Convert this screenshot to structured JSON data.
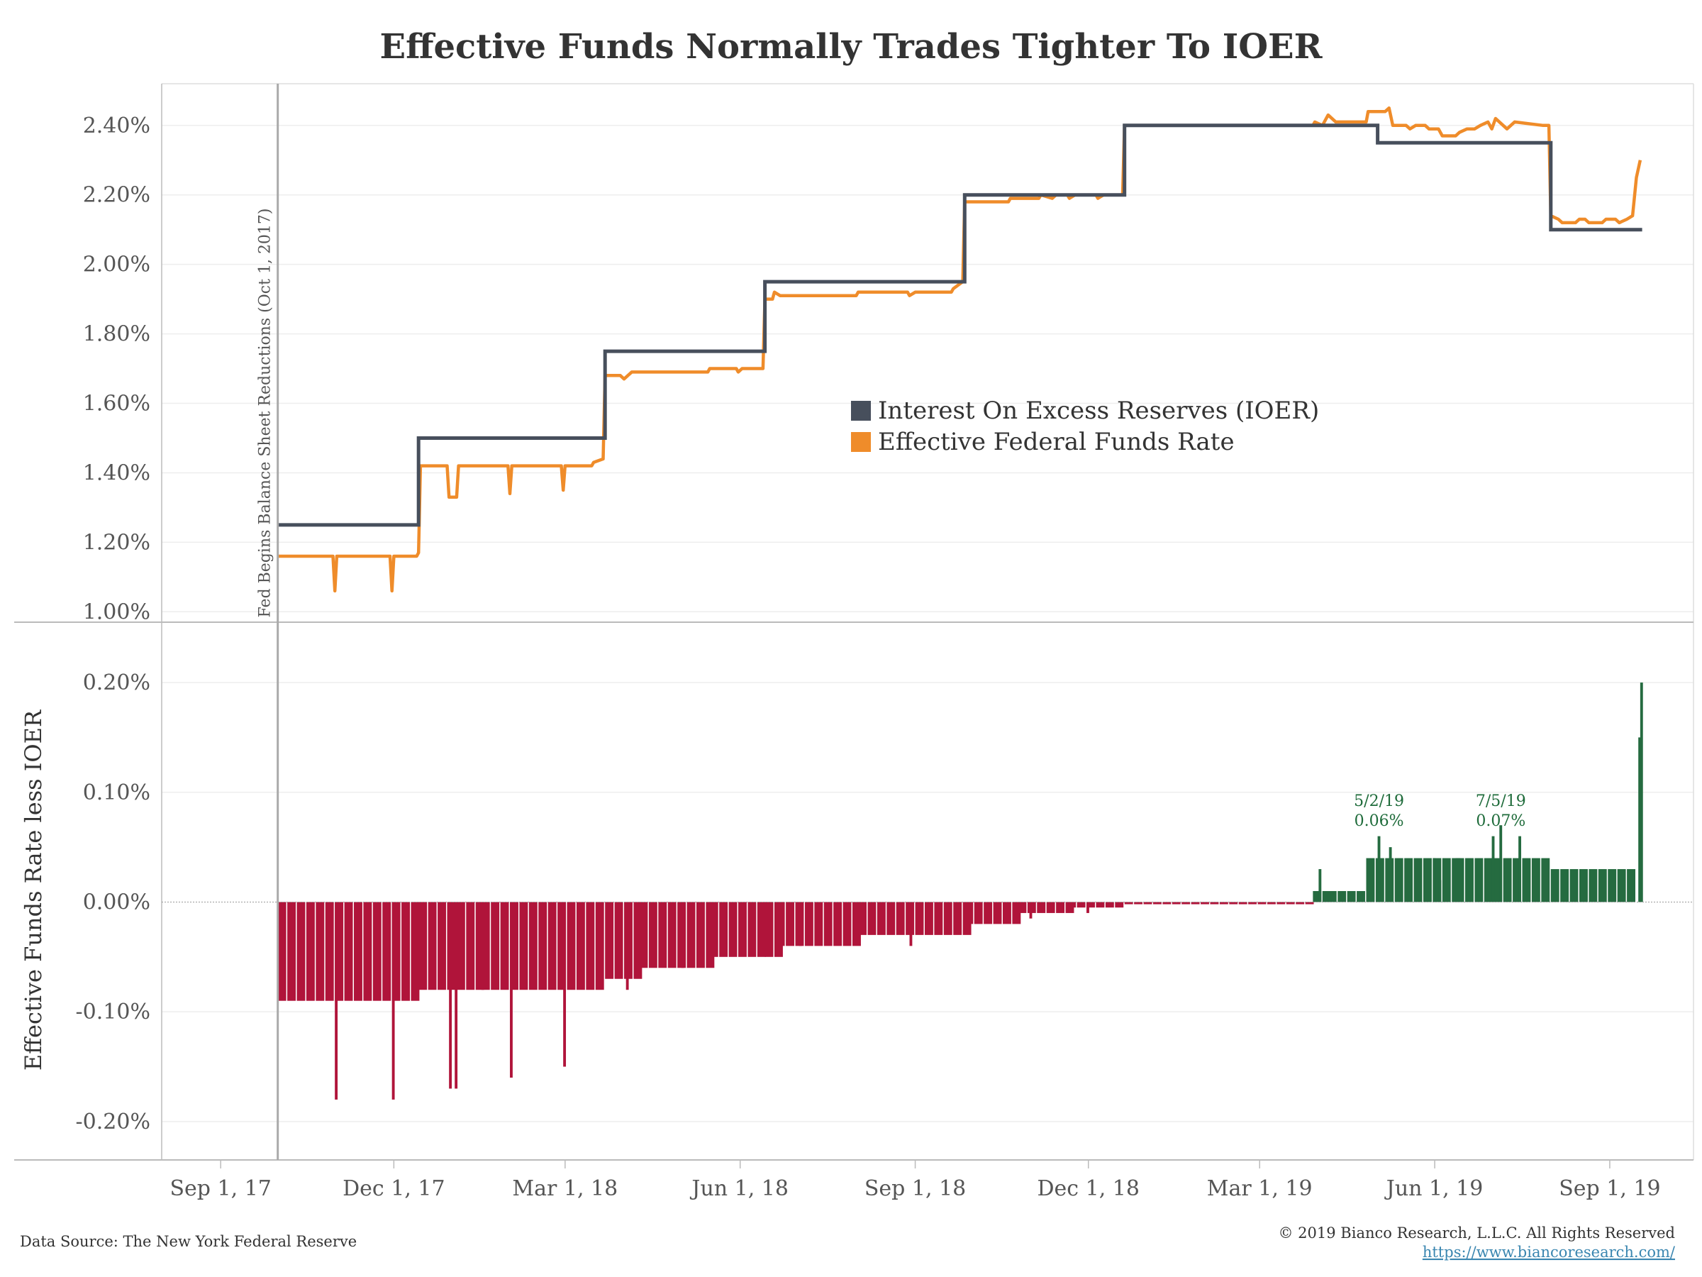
{
  "title": "Effective Funds Normally Trades Tighter To IOER",
  "footer": {
    "source": "Data Source: The New York Federal Reserve",
    "copyright": "© 2019 Bianco Research, L.L.C. All Rights Reserved",
    "url": "https://www.biancoresearch.com/"
  },
  "colors": {
    "ioer": "#474f5c",
    "effr": "#ef8c2a",
    "negative": "#b0143a",
    "positive": "#256b40",
    "gridline": "#eeeeee",
    "axis": "#bbbbbb"
  },
  "chart_data": [
    {
      "type": "line",
      "x_type": "date",
      "xlim": [
        "2017-08-01",
        "2019-10-15"
      ],
      "x_ticks": [
        {
          "date": "2017-09-01",
          "label": "Sep 1, 17"
        },
        {
          "date": "2017-12-01",
          "label": "Dec 1, 17"
        },
        {
          "date": "2018-03-01",
          "label": "Mar 1, 18"
        },
        {
          "date": "2018-06-01",
          "label": "Jun 1, 18"
        },
        {
          "date": "2018-09-01",
          "label": "Sep 1, 18"
        },
        {
          "date": "2018-12-01",
          "label": "Dec 1, 18"
        },
        {
          "date": "2019-03-01",
          "label": "Mar 1, 19"
        },
        {
          "date": "2019-06-01",
          "label": "Jun 1, 19"
        },
        {
          "date": "2019-09-01",
          "label": "Sep 1, 19"
        }
      ],
      "ylim": [
        0.97,
        2.52
      ],
      "y_ticks": [
        {
          "value": 1.0,
          "label": "1.00%"
        },
        {
          "value": 1.2,
          "label": "1.20%"
        },
        {
          "value": 1.4,
          "label": "1.40%"
        },
        {
          "value": 1.6,
          "label": "1.60%"
        },
        {
          "value": 1.8,
          "label": "1.80%"
        },
        {
          "value": 2.0,
          "label": "2.00%"
        },
        {
          "value": 2.2,
          "label": "2.20%"
        },
        {
          "value": 2.4,
          "label": "2.40%"
        }
      ],
      "legend": {
        "placement": "center",
        "entries": [
          {
            "label": "Interest On Excess Reserves (IOER)",
            "series": "ioer"
          },
          {
            "label": "Effective Federal Funds Rate",
            "series": "effr"
          }
        ]
      },
      "series": [
        {
          "key": "ioer",
          "name": "Interest On Excess Reserves (IOER)",
          "step": true,
          "points": [
            [
              "2017-10-01",
              1.25
            ],
            [
              "2017-12-14",
              1.5
            ],
            [
              "2018-03-22",
              1.75
            ],
            [
              "2018-06-14",
              1.95
            ],
            [
              "2018-09-27",
              2.2
            ],
            [
              "2018-12-20",
              2.4
            ],
            [
              "2019-05-02",
              2.35
            ],
            [
              "2019-08-01",
              2.1
            ],
            [
              "2019-09-18",
              2.1
            ]
          ]
        },
        {
          "key": "effr",
          "name": "Effective Federal Funds Rate",
          "points": [
            [
              "2017-10-01",
              1.16
            ],
            [
              "2017-10-30",
              1.16
            ],
            [
              "2017-10-31",
              1.06
            ],
            [
              "2017-11-01",
              1.16
            ],
            [
              "2017-11-29",
              1.16
            ],
            [
              "2017-11-30",
              1.06
            ],
            [
              "2017-12-01",
              1.16
            ],
            [
              "2017-12-13",
              1.16
            ],
            [
              "2017-12-14",
              1.17
            ],
            [
              "2017-12-15",
              1.42
            ],
            [
              "2017-12-29",
              1.42
            ],
            [
              "2017-12-30",
              1.33
            ],
            [
              "2018-01-03",
              1.33
            ],
            [
              "2018-01-04",
              1.42
            ],
            [
              "2018-01-30",
              1.42
            ],
            [
              "2018-01-31",
              1.34
            ],
            [
              "2018-02-01",
              1.42
            ],
            [
              "2018-02-27",
              1.42
            ],
            [
              "2018-02-28",
              1.35
            ],
            [
              "2018-03-01",
              1.42
            ],
            [
              "2018-03-15",
              1.42
            ],
            [
              "2018-03-16",
              1.43
            ],
            [
              "2018-03-21",
              1.44
            ],
            [
              "2018-03-22",
              1.68
            ],
            [
              "2018-03-30",
              1.68
            ],
            [
              "2018-04-01",
              1.67
            ],
            [
              "2018-04-05",
              1.69
            ],
            [
              "2018-05-15",
              1.69
            ],
            [
              "2018-05-16",
              1.7
            ],
            [
              "2018-05-30",
              1.7
            ],
            [
              "2018-05-31",
              1.69
            ],
            [
              "2018-06-02",
              1.7
            ],
            [
              "2018-06-13",
              1.7
            ],
            [
              "2018-06-14",
              1.9
            ],
            [
              "2018-06-18",
              1.9
            ],
            [
              "2018-06-19",
              1.92
            ],
            [
              "2018-06-22",
              1.91
            ],
            [
              "2018-08-01",
              1.91
            ],
            [
              "2018-08-02",
              1.92
            ],
            [
              "2018-08-28",
              1.92
            ],
            [
              "2018-08-29",
              1.91
            ],
            [
              "2018-09-01",
              1.92
            ],
            [
              "2018-09-20",
              1.92
            ],
            [
              "2018-09-21",
              1.93
            ],
            [
              "2018-09-26",
              1.95
            ],
            [
              "2018-09-27",
              2.18
            ],
            [
              "2018-10-20",
              2.18
            ],
            [
              "2018-10-21",
              2.19
            ],
            [
              "2018-11-05",
              2.19
            ],
            [
              "2018-11-06",
              2.2
            ],
            [
              "2018-11-12",
              2.19
            ],
            [
              "2018-11-14",
              2.2
            ],
            [
              "2018-11-20",
              2.2
            ],
            [
              "2018-11-21",
              2.19
            ],
            [
              "2018-11-24",
              2.2
            ],
            [
              "2018-12-05",
              2.2
            ],
            [
              "2018-12-06",
              2.19
            ],
            [
              "2018-12-09",
              2.2
            ],
            [
              "2018-12-19",
              2.2
            ],
            [
              "2018-12-20",
              2.4
            ],
            [
              "2019-03-29",
              2.4
            ],
            [
              "2019-03-30",
              2.41
            ],
            [
              "2019-04-03",
              2.4
            ],
            [
              "2019-04-06",
              2.43
            ],
            [
              "2019-04-10",
              2.41
            ],
            [
              "2019-04-26",
              2.41
            ],
            [
              "2019-04-27",
              2.44
            ],
            [
              "2019-05-06",
              2.44
            ],
            [
              "2019-05-08",
              2.45
            ],
            [
              "2019-05-10",
              2.4
            ],
            [
              "2019-05-17",
              2.4
            ],
            [
              "2019-05-19",
              2.39
            ],
            [
              "2019-05-22",
              2.4
            ],
            [
              "2019-05-27",
              2.4
            ],
            [
              "2019-05-29",
              2.39
            ],
            [
              "2019-06-03",
              2.39
            ],
            [
              "2019-06-05",
              2.37
            ],
            [
              "2019-06-12",
              2.37
            ],
            [
              "2019-06-14",
              2.38
            ],
            [
              "2019-06-18",
              2.39
            ],
            [
              "2019-06-22",
              2.39
            ],
            [
              "2019-06-25",
              2.4
            ],
            [
              "2019-06-29",
              2.41
            ],
            [
              "2019-07-01",
              2.39
            ],
            [
              "2019-07-03",
              2.42
            ],
            [
              "2019-07-05",
              2.41
            ],
            [
              "2019-07-09",
              2.39
            ],
            [
              "2019-07-13",
              2.41
            ],
            [
              "2019-07-28",
              2.4
            ],
            [
              "2019-07-31",
              2.4
            ],
            [
              "2019-08-01",
              2.14
            ],
            [
              "2019-08-05",
              2.13
            ],
            [
              "2019-08-07",
              2.12
            ],
            [
              "2019-08-14",
              2.12
            ],
            [
              "2019-08-16",
              2.13
            ],
            [
              "2019-08-19",
              2.13
            ],
            [
              "2019-08-21",
              2.12
            ],
            [
              "2019-08-28",
              2.12
            ],
            [
              "2019-08-30",
              2.13
            ],
            [
              "2019-09-04",
              2.13
            ],
            [
              "2019-09-06",
              2.12
            ],
            [
              "2019-09-10",
              2.13
            ],
            [
              "2019-09-13",
              2.14
            ],
            [
              "2019-09-15",
              2.25
            ],
            [
              "2019-09-17",
              2.3
            ]
          ]
        }
      ],
      "annotations": [
        {
          "date": "2017-10-01",
          "label": "Fed Begins Balance Sheet Reductions (Oct 1, 2017)"
        }
      ]
    },
    {
      "type": "bar",
      "x_type": "date",
      "xlim": [
        "2017-08-01",
        "2019-10-15"
      ],
      "ylim": [
        -0.235,
        0.255
      ],
      "ylabel": "Effective Funds Rate less IOER",
      "y_ticks": [
        {
          "value": -0.2,
          "label": "-0.20%"
        },
        {
          "value": -0.1,
          "label": "-0.10%"
        },
        {
          "value": 0.0,
          "label": "0.00%"
        },
        {
          "value": 0.1,
          "label": "0.10%"
        },
        {
          "value": 0.2,
          "label": "0.20%"
        }
      ],
      "base_intervals": [
        [
          "2017-10-01",
          "2017-12-14",
          -0.09
        ],
        [
          "2017-12-14",
          "2018-01-16",
          -0.08
        ],
        [
          "2018-01-16",
          "2018-03-22",
          -0.08
        ],
        [
          "2018-03-22",
          "2018-04-09",
          -0.07
        ],
        [
          "2018-04-09",
          "2018-05-16",
          -0.06
        ],
        [
          "2018-05-16",
          "2018-06-14",
          -0.05
        ],
        [
          "2018-06-14",
          "2018-06-20",
          -0.05
        ],
        [
          "2018-06-20",
          "2018-08-02",
          -0.04
        ],
        [
          "2018-08-02",
          "2018-09-27",
          -0.03
        ],
        [
          "2018-09-27",
          "2018-10-25",
          -0.02
        ],
        [
          "2018-10-25",
          "2018-11-20",
          -0.01
        ],
        [
          "2018-11-20",
          "2018-12-20",
          -0.005
        ],
        [
          "2018-12-20",
          "2019-03-29",
          -0.002
        ],
        [
          "2019-03-29",
          "2019-04-06",
          0.01
        ],
        [
          "2019-04-06",
          "2019-04-26",
          0.01
        ],
        [
          "2019-04-26",
          "2019-06-12",
          0.04
        ],
        [
          "2019-06-12",
          "2019-08-01",
          0.04
        ],
        [
          "2019-08-01",
          "2019-09-15",
          0.03
        ]
      ],
      "spikes": [
        [
          "2017-10-31",
          -0.18
        ],
        [
          "2017-11-30",
          -0.18
        ],
        [
          "2017-12-30",
          -0.17
        ],
        [
          "2018-01-02",
          -0.17
        ],
        [
          "2018-01-31",
          -0.16
        ],
        [
          "2018-02-28",
          -0.15
        ],
        [
          "2018-04-02",
          -0.08
        ],
        [
          "2018-05-01",
          -0.06
        ],
        [
          "2018-07-02",
          -0.04
        ],
        [
          "2018-08-29",
          -0.04
        ],
        [
          "2018-10-31",
          -0.015
        ],
        [
          "2018-11-30",
          -0.01
        ],
        [
          "2019-04-01",
          0.03
        ],
        [
          "2019-05-02",
          0.06
        ],
        [
          "2019-05-08",
          0.05
        ],
        [
          "2019-05-31",
          0.04
        ],
        [
          "2019-06-03",
          0.02
        ],
        [
          "2019-07-01",
          0.06
        ],
        [
          "2019-07-05",
          0.07
        ],
        [
          "2019-07-15",
          0.06
        ],
        [
          "2019-09-16",
          0.15
        ],
        [
          "2019-09-17",
          0.2
        ]
      ],
      "annotations": [
        {
          "date": "5/2/19",
          "value": "0.06%"
        },
        {
          "date": "7/5/19",
          "value": "0.07%"
        }
      ]
    }
  ]
}
